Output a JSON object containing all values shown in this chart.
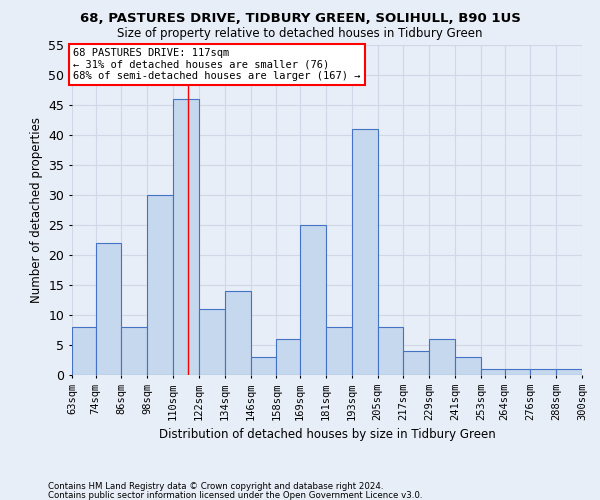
{
  "title": "68, PASTURES DRIVE, TIDBURY GREEN, SOLIHULL, B90 1US",
  "subtitle": "Size of property relative to detached houses in Tidbury Green",
  "xlabel": "Distribution of detached houses by size in Tidbury Green",
  "ylabel": "Number of detached properties",
  "footnote1": "Contains HM Land Registry data © Crown copyright and database right 2024.",
  "footnote2": "Contains public sector information licensed under the Open Government Licence v3.0.",
  "bins": [
    63,
    74,
    86,
    98,
    110,
    122,
    134,
    146,
    158,
    169,
    181,
    193,
    205,
    217,
    229,
    241,
    253,
    264,
    276,
    288,
    300
  ],
  "bin_labels": [
    "63sqm",
    "74sqm",
    "86sqm",
    "98sqm",
    "110sqm",
    "122sqm",
    "134sqm",
    "146sqm",
    "158sqm",
    "169sqm",
    "181sqm",
    "193sqm",
    "205sqm",
    "217sqm",
    "229sqm",
    "241sqm",
    "253sqm",
    "264sqm",
    "276sqm",
    "288sqm",
    "300sqm"
  ],
  "values": [
    8,
    22,
    8,
    30,
    46,
    11,
    14,
    3,
    6,
    25,
    8,
    41,
    8,
    4,
    6,
    3,
    1,
    1,
    1,
    1
  ],
  "bar_color": "#c5d8ed",
  "bar_edge_color": "#4472c4",
  "grid_color": "#d0d8e8",
  "background_color": "#e8eef7",
  "annotation_text": "68 PASTURES DRIVE: 117sqm\n← 31% of detached houses are smaller (76)\n68% of semi-detached houses are larger (167) →",
  "annotation_box_color": "white",
  "annotation_box_edge": "red",
  "marker_value": 117,
  "ylim": [
    0,
    55
  ],
  "yticks": [
    0,
    5,
    10,
    15,
    20,
    25,
    30,
    35,
    40,
    45,
    50,
    55
  ]
}
